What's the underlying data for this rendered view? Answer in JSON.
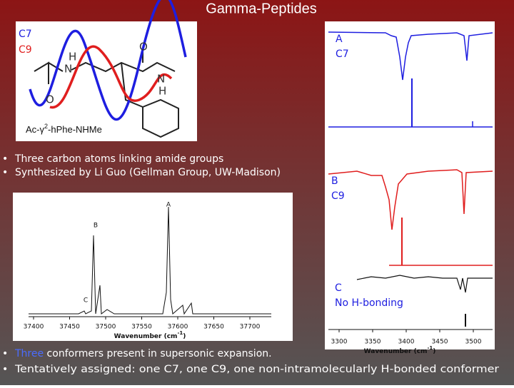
{
  "title": "Gamma-Peptides",
  "molecule": {
    "legend": [
      "C7",
      "C9"
    ],
    "atoms": [
      "H",
      "N",
      "O",
      "O",
      "N",
      "H"
    ],
    "name": {
      "prefix": "Ac-γ",
      "sup": "2",
      "suffix": "-hPhe-NHMe"
    }
  },
  "bullets_top": [
    "Three carbon atoms linking amide groups",
    "Synthesized by Li Guo (Gellman Group, UW-Madison)"
  ],
  "left_spectrum": {
    "peaks": [
      "A",
      "B",
      "C"
    ],
    "xticks": [
      37400,
      37450,
      37500,
      37550,
      37600,
      37650,
      37700
    ],
    "xlabel": {
      "text": "Wavenumber (cm",
      "sup": "-1",
      "close": ")"
    }
  },
  "right_spectrum": {
    "panels": [
      {
        "letter": "A",
        "label": "C7"
      },
      {
        "letter": "B",
        "label": "C9"
      },
      {
        "letter": "C",
        "label": "No H-bonding"
      }
    ],
    "xticks": [
      3300,
      3350,
      3400,
      3450,
      3500
    ],
    "xlabel": {
      "text": "Wavenumber (cm",
      "sup": "-1",
      "close": ")"
    }
  },
  "bullets_bottom": [
    {
      "highlight": "Three",
      "rest": " conformers present in supersonic expansion."
    },
    {
      "text": "Tentatively assigned:  one C7, one C9, one non-intramolecularly H-bonded conformer"
    }
  ]
}
